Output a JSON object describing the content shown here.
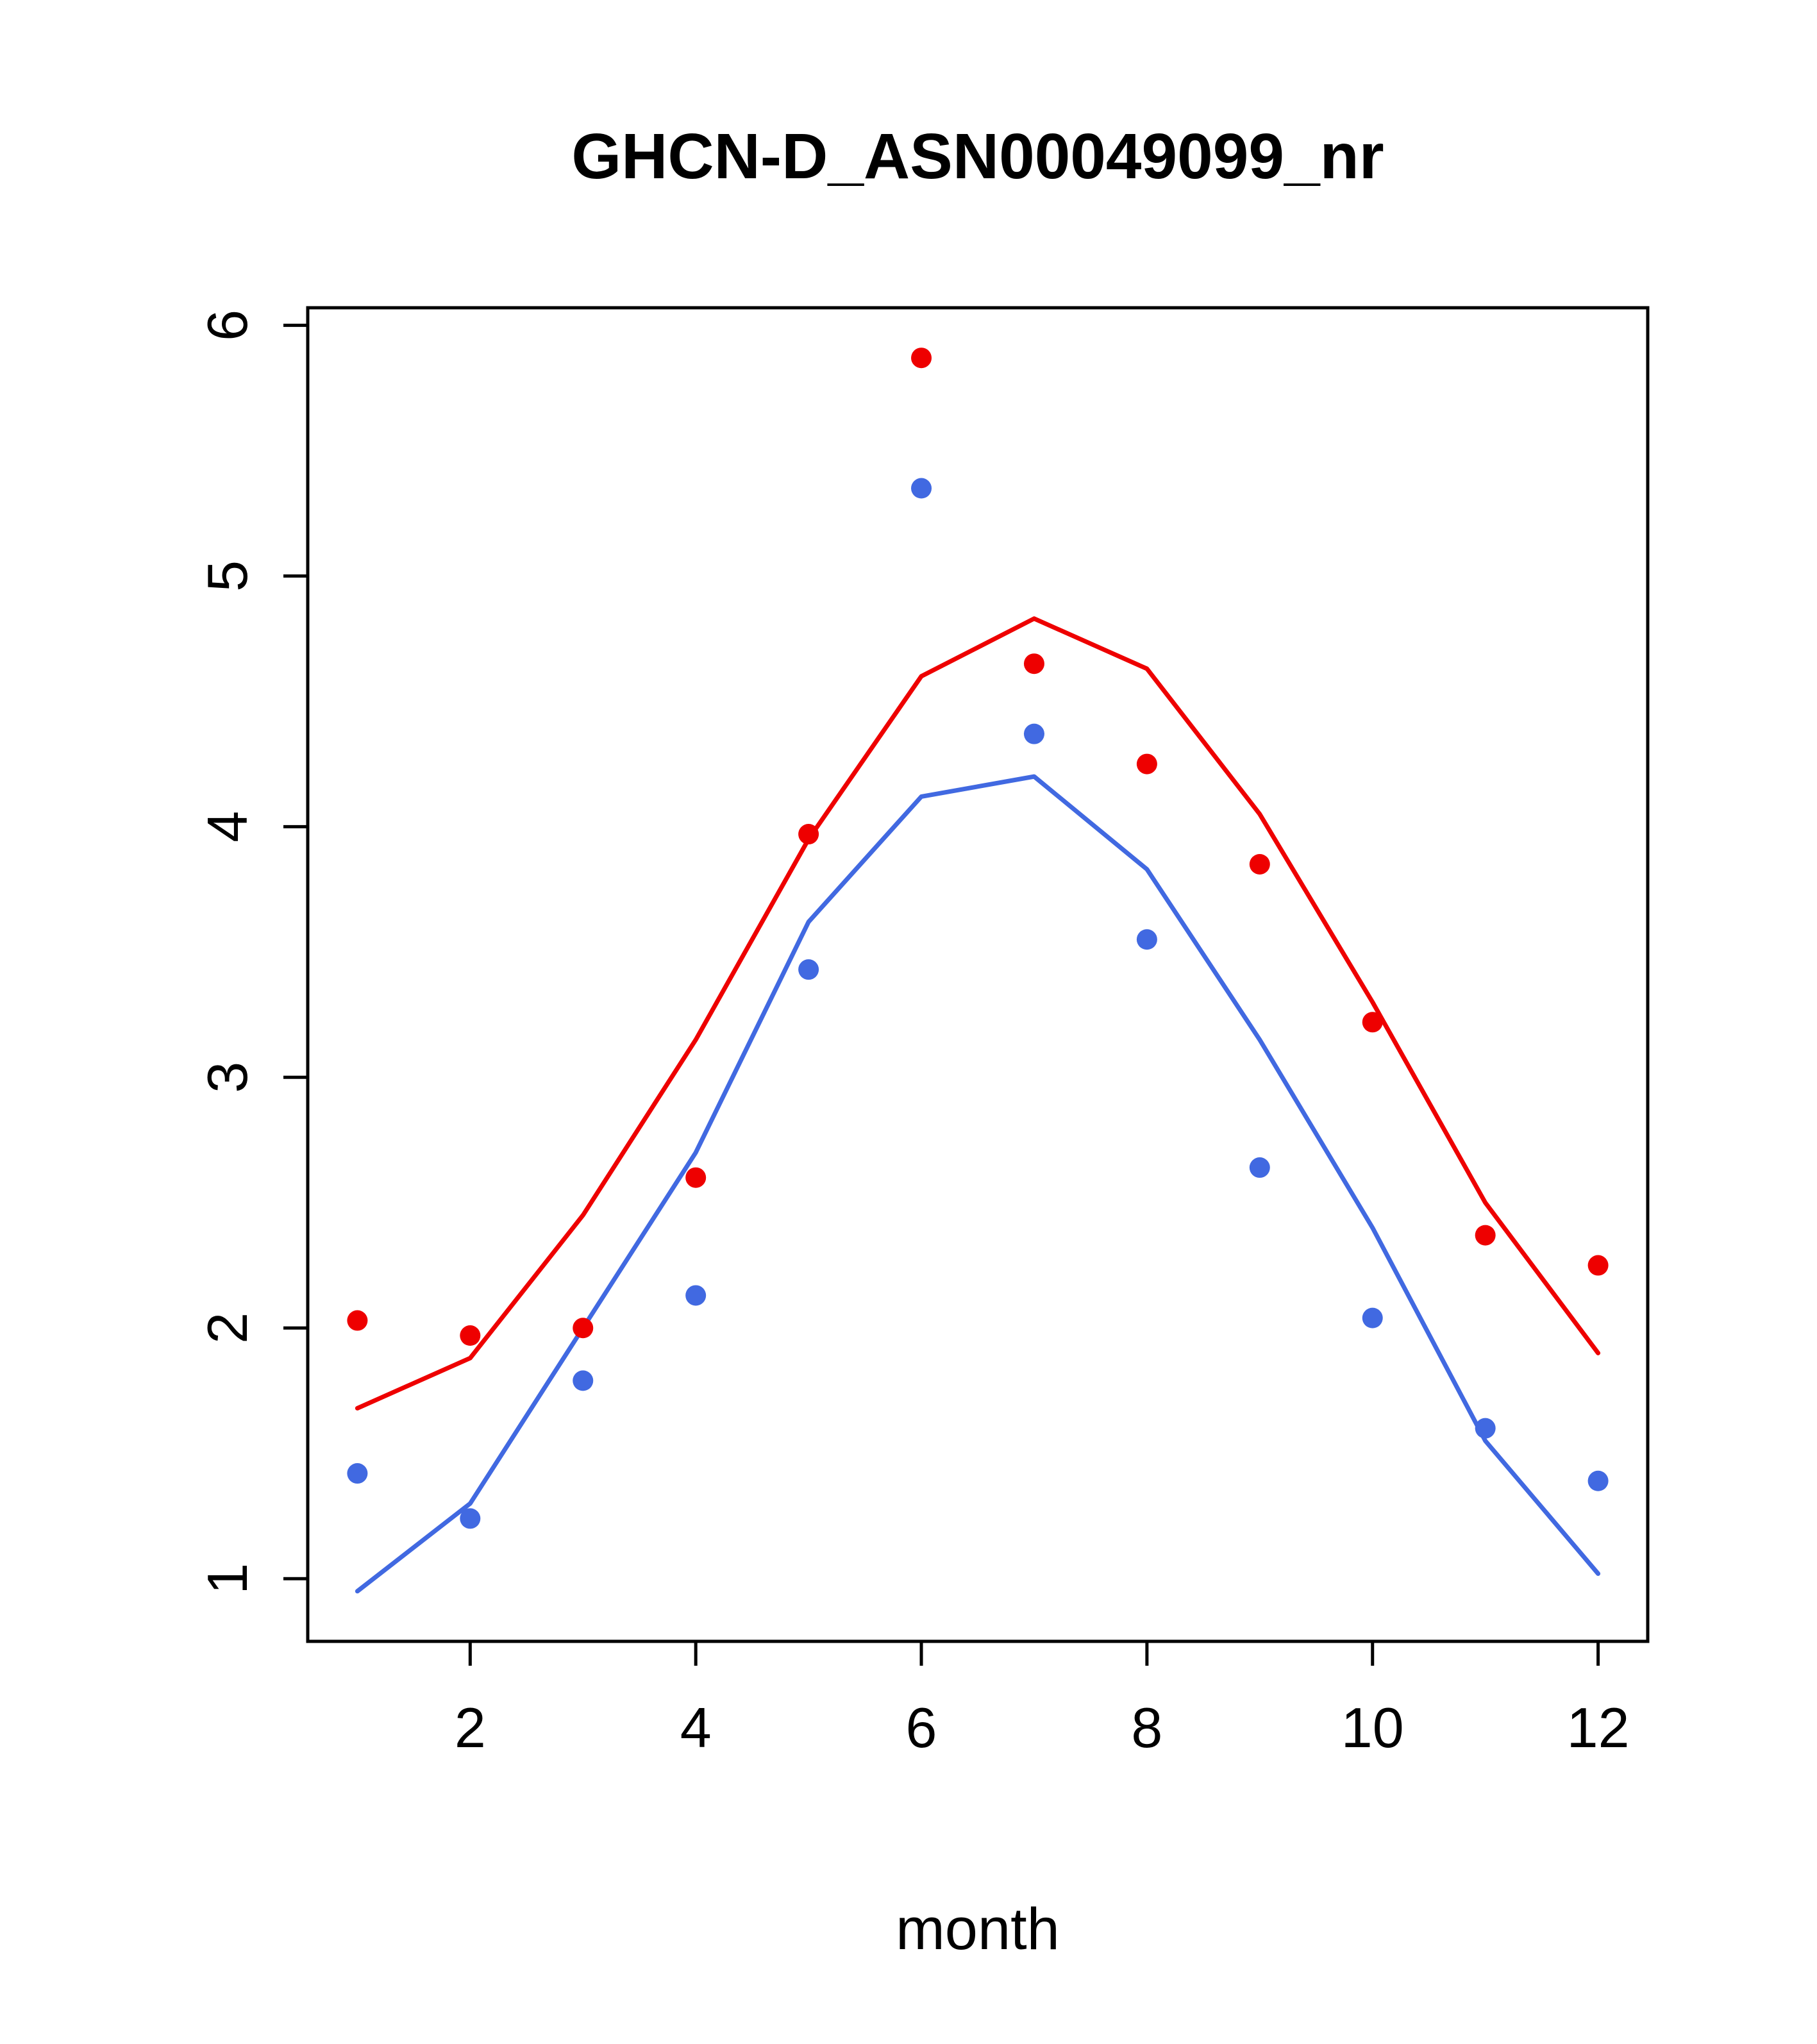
{
  "chart_data": {
    "type": "line",
    "title": "GHCN-D_ASN00049099_nr",
    "xlabel": "month",
    "ylabel": "",
    "x": [
      1,
      2,
      3,
      4,
      5,
      6,
      7,
      8,
      9,
      10,
      11,
      12
    ],
    "xticks": [
      2,
      4,
      6,
      8,
      10,
      12
    ],
    "yticks": [
      1,
      2,
      3,
      4,
      5,
      6
    ],
    "xlim": [
      0.56,
      12.44
    ],
    "ylim": [
      0.75,
      6.07
    ],
    "grid": false,
    "legend": null,
    "series": [
      {
        "name": "red-monthly-line",
        "type": "line",
        "color": "#EE0000",
        "values": [
          1.68,
          1.88,
          2.45,
          3.15,
          3.95,
          4.6,
          4.83,
          4.63,
          4.05,
          3.3,
          2.5,
          1.9
        ]
      },
      {
        "name": "blue-monthly-line",
        "type": "line",
        "color": "#4169E1",
        "values": [
          0.95,
          1.3,
          2.0,
          2.7,
          3.62,
          4.12,
          4.2,
          3.83,
          3.15,
          2.4,
          1.55,
          1.02
        ]
      },
      {
        "name": "red-monthly-points",
        "type": "scatter",
        "color": "#EE0000",
        "values": [
          2.03,
          1.97,
          2.0,
          2.6,
          3.97,
          5.87,
          4.65,
          4.25,
          3.85,
          3.22,
          2.37,
          2.25
        ]
      },
      {
        "name": "blue-monthly-points",
        "type": "scatter",
        "color": "#4169E1",
        "values": [
          1.42,
          1.24,
          1.79,
          2.13,
          3.43,
          5.35,
          4.37,
          3.55,
          2.64,
          2.04,
          1.6,
          1.39
        ]
      }
    ]
  }
}
